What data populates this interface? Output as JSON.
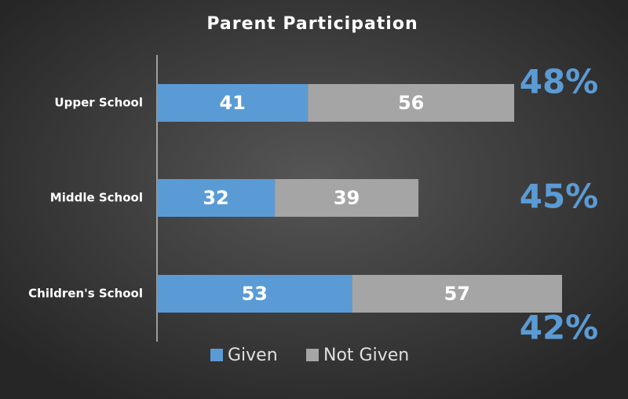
{
  "chart_data": {
    "type": "stacked-bar-horizontal",
    "title": "Parent Participation",
    "categories": [
      "Upper School",
      "Middle School",
      "Children's School"
    ],
    "series": [
      {
        "name": "Given",
        "color": "#5b9bd5",
        "values": [
          41,
          32,
          53
        ]
      },
      {
        "name": "Not Given",
        "color": "#a5a5a5",
        "values": [
          56,
          39,
          57
        ]
      }
    ],
    "annotations": [
      "48%",
      "45%",
      "42%"
    ],
    "annotation_color": "#5b9bd5"
  }
}
